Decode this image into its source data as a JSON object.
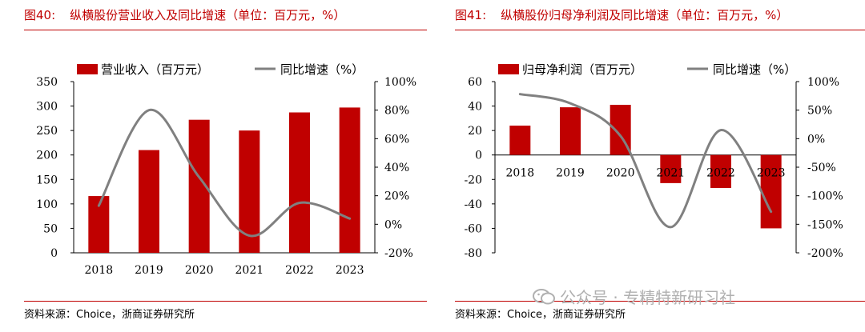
{
  "charts": [
    {
      "fig_no": "图40:",
      "title": "纵横股份营业收入及同比增速（单位：百万元，%）",
      "source": "资料来源：Choice，浙商证券研究所"
    },
    {
      "fig_no": "图41:",
      "title": "纵横股份归母净利润及同比增速（单位：百万元，%）",
      "source": "资料来源：Choice，浙商证券研究所"
    }
  ],
  "watermark": {
    "text": "公众号 · 专精特新研习社",
    "icon": "wechat-icon"
  },
  "colors": {
    "bar": "#c00000",
    "line": "#808080",
    "rule": "#c00000"
  },
  "chart_data": [
    {
      "type": "bar+line",
      "title": "纵横股份营业收入及同比增速（单位：百万元，%）",
      "categories": [
        "2018",
        "2019",
        "2020",
        "2021",
        "2022",
        "2023"
      ],
      "series": [
        {
          "name": "营业收入（百万元）",
          "type": "bar",
          "axis": "left",
          "values": [
            116,
            210,
            272,
            250,
            287,
            297
          ]
        },
        {
          "name": "同比增速（%）",
          "type": "line",
          "axis": "right",
          "values": [
            13,
            80,
            33,
            -8,
            15,
            4
          ]
        }
      ],
      "ylim_left": [
        0,
        350
      ],
      "yticks_left": [
        "0",
        "50",
        "100",
        "150",
        "200",
        "250",
        "300",
        "350"
      ],
      "ylim_right": [
        -20,
        100
      ],
      "yticks_right": [
        "-20%",
        "0%",
        "20%",
        "40%",
        "60%",
        "80%",
        "100%"
      ],
      "legend": [
        "营业收入（百万元）",
        "同比增速（%）"
      ],
      "legend_position": "top"
    },
    {
      "type": "bar+line",
      "title": "纵横股份归母净利润及同比增速（单位：百万元，%）",
      "categories": [
        "2018",
        "2019",
        "2020",
        "2021",
        "2022",
        "2023"
      ],
      "series": [
        {
          "name": "归母净利润（百万元）",
          "type": "bar",
          "axis": "left",
          "values": [
            24,
            39,
            41,
            -23,
            -27,
            -60
          ]
        },
        {
          "name": "同比增速（%）",
          "type": "line",
          "axis": "right",
          "values": [
            78,
            62,
            5,
            -155,
            15,
            -128
          ]
        }
      ],
      "ylim_left": [
        -80,
        60
      ],
      "yticks_left": [
        "-80",
        "-60",
        "-40",
        "-20",
        "0",
        "20",
        "40",
        "60"
      ],
      "ylim_right": [
        -200,
        100
      ],
      "yticks_right": [
        "-200%",
        "-150%",
        "-100%",
        "-50%",
        "0%",
        "50%",
        "100%"
      ],
      "legend": [
        "归母净利润（百万元）",
        "同比增速（%）"
      ],
      "legend_position": "top"
    }
  ]
}
